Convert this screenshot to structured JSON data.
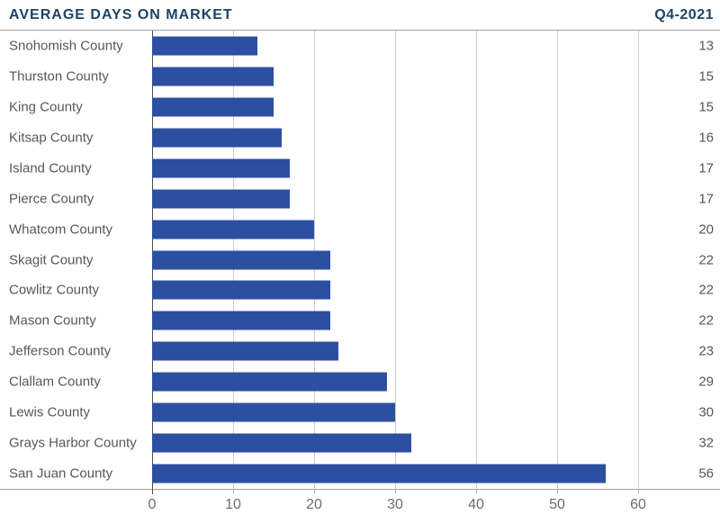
{
  "header": {
    "title": "AVERAGE DAYS ON MARKET",
    "period": "Q4-2021"
  },
  "chart_data": {
    "type": "bar",
    "orientation": "horizontal",
    "title": "AVERAGE DAYS ON MARKET",
    "subtitle": "Q4-2021",
    "categories": [
      "Snohomish County",
      "Thurston County",
      "King County",
      "Kitsap County",
      "Island County",
      "Pierce County",
      "Whatcom County",
      "Skagit County",
      "Cowlitz County",
      "Mason County",
      "Jefferson County",
      "Clallam County",
      "Lewis County",
      "Grays Harbor County",
      "San Juan County"
    ],
    "values": [
      13,
      15,
      15,
      16,
      17,
      17,
      20,
      22,
      22,
      22,
      23,
      29,
      30,
      32,
      56
    ],
    "x_ticks": [
      0,
      10,
      20,
      30,
      40,
      50,
      60
    ],
    "xlim": [
      0,
      60
    ],
    "xlabel": "",
    "ylabel": "",
    "grid": true,
    "legend": "none",
    "bar_color": "#2d4fa1"
  },
  "colors": {
    "title": "#1c4467",
    "bar": "#2d4fa1",
    "category_label": "#55575a",
    "value_label": "#55575a",
    "tick_label": "#6a6c6e",
    "gridline": "#cccccc",
    "axis_line": "#4d4d4d",
    "border": "#a3a3a3"
  }
}
